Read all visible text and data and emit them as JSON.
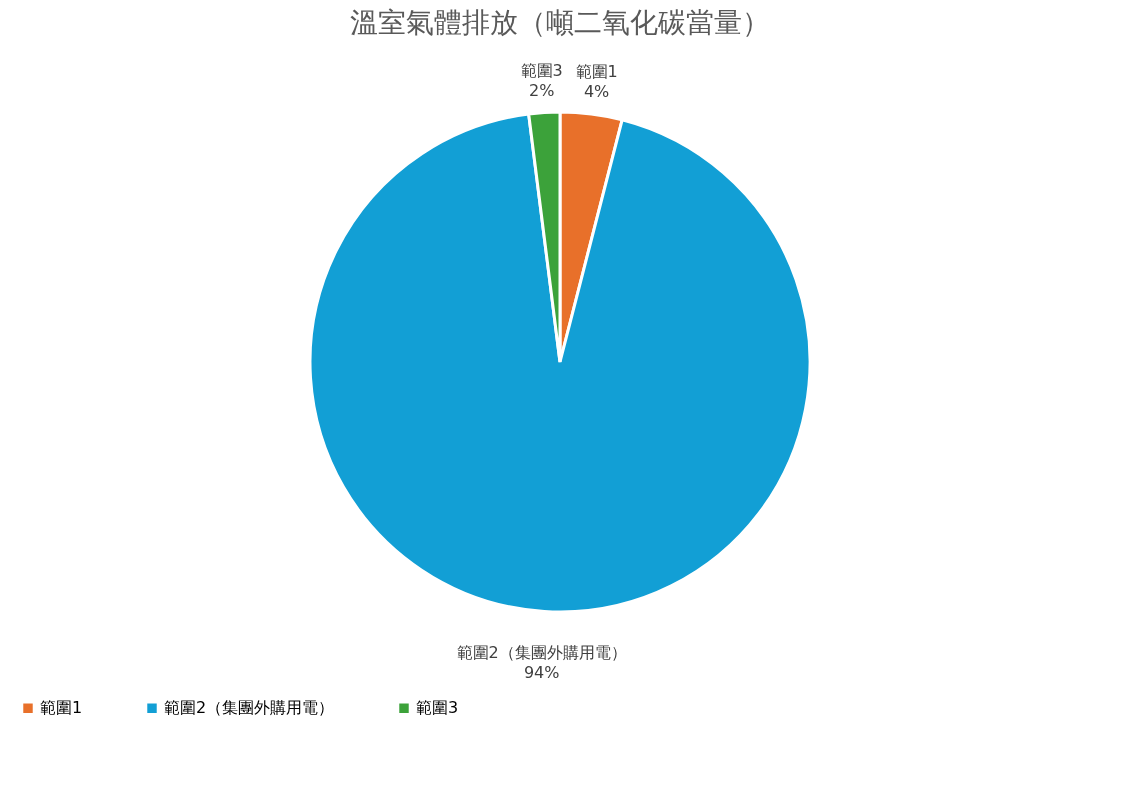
{
  "chart_data": {
    "type": "pie",
    "title": "溫室氣體排放（噸二氧化碳當量）",
    "categories": [
      "範圍1",
      "範圍2（集團外購用電）",
      "範圍3"
    ],
    "values": [
      4,
      94,
      2
    ],
    "colors": [
      "#e8702a",
      "#129fd5",
      "#3ca23a"
    ],
    "value_labels": [
      "4%",
      "94%",
      "2%"
    ],
    "legend": "bottom"
  }
}
